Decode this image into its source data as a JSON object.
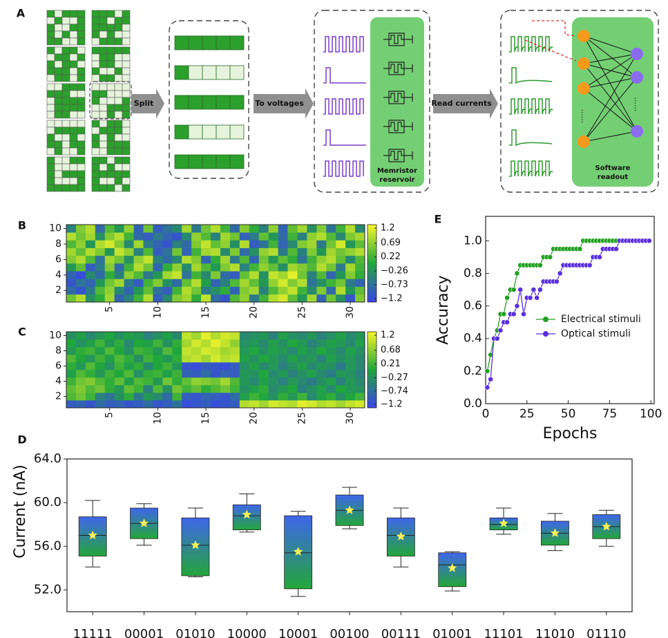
{
  "panel_labels": [
    "A",
    "B",
    "C",
    "D",
    "E"
  ],
  "diagram": {
    "arrows": [
      "Split",
      "To voltages",
      "Read currents"
    ],
    "reservoir_label": [
      "Memristor",
      "reservoir"
    ],
    "readout_label": [
      "Software",
      "readout"
    ],
    "ellipsis": "......"
  },
  "chart_data": [
    {
      "type": "heatmap",
      "x": [
        1,
        2,
        3,
        4,
        5,
        6,
        7,
        8,
        9,
        10,
        11,
        12,
        13,
        14,
        15,
        16,
        17,
        18,
        19,
        20,
        21,
        22,
        23,
        24,
        25,
        26,
        27,
        28,
        29,
        30,
        31
      ],
      "y": [
        1,
        2,
        3,
        4,
        5,
        6,
        7,
        8,
        9,
        10
      ],
      "xlim": [
        0.5,
        31.5
      ],
      "ylim": [
        0.5,
        10.5
      ],
      "xticks": [
        5,
        10,
        15,
        20,
        25,
        30
      ],
      "yticks": [
        2,
        4,
        6,
        8,
        10
      ],
      "zlim": [
        -1.32,
        1.32
      ],
      "colormap": [
        "#3a45e8",
        "#20a63c",
        "#f6f62a"
      ],
      "colorbar_ticks": [
        1.2,
        0.69,
        0.22,
        {
          "value": -0.26,
          "label": "−0.26"
        },
        {
          "value": -0.73,
          "label": "−0.73"
        },
        {
          "value": -1.2,
          "label": "−1.2"
        }
      ],
      "z": [
        [
          0.5,
          0.9,
          -0.3,
          0.1,
          0.8,
          -0.9,
          -0.5,
          0.2,
          0.9,
          -1.0,
          -0.4,
          0.6,
          0.8,
          0.1,
          1.0,
          -0.8,
          -1.1,
          0.3,
          0.7,
          -0.6,
          0.2,
          0.9,
          1.1,
          0.4,
          -0.2,
          0.8,
          -0.9,
          0.5,
          -0.3,
          -1.1,
          0.6
        ],
        [
          -0.8,
          -1.1,
          -0.6,
          0.3,
          0.7,
          -0.4,
          -0.9,
          -0.2,
          0.4,
          -0.7,
          -1.0,
          0.2,
          0.9,
          0.5,
          -0.6,
          -0.3,
          0.1,
          -0.9,
          0.6,
          0.8,
          -0.5,
          0.3,
          0.7,
          1.0,
          0.2,
          -0.4,
          0.6,
          -0.8,
          0.9,
          -0.2,
          0.4
        ],
        [
          -1.1,
          -0.7,
          -0.9,
          -0.2,
          0.5,
          0.8,
          -0.6,
          -1.0,
          0.2,
          0.6,
          -0.3,
          -0.8,
          0.4,
          0.9,
          -0.1,
          -0.9,
          -0.5,
          0.3,
          0.8,
          0.4,
          -0.2,
          0.7,
          1.1,
          0.6,
          0.9,
          -0.7,
          -0.3,
          0.2,
          0.5,
          -0.6,
          -0.9
        ],
        [
          -0.9,
          -1.2,
          -0.4,
          -0.8,
          0.1,
          -0.5,
          0.7,
          0.3,
          -0.6,
          -0.2,
          0.8,
          1.0,
          -0.7,
          0.2,
          -0.4,
          0.6,
          -0.8,
          -1.0,
          0.4,
          0.9,
          -0.3,
          1.0,
          0.8,
          1.2,
          0.5,
          -0.5,
          0.3,
          -0.9,
          -0.2,
          0.6,
          0.1
        ],
        [
          -0.2,
          0.4,
          -1.0,
          -0.6,
          0.6,
          -0.8,
          0.2,
          0.9,
          0.5,
          -0.9,
          0.1,
          0.7,
          -0.4,
          0.8,
          0.3,
          -0.2,
          0.6,
          0.9,
          -0.5,
          0.2,
          0.7,
          0.4,
          -0.3,
          0.8,
          0.6,
          0.3,
          0.9,
          0.5,
          -0.6,
          0.8,
          0.2
        ],
        [
          0.6,
          0.9,
          0.3,
          -0.7,
          0.8,
          0.5,
          -0.3,
          0.7,
          1.0,
          -0.5,
          -0.8,
          -0.4,
          0.9,
          0.6,
          -0.9,
          0.1,
          0.8,
          -0.6,
          0.3,
          -0.9,
          0.5,
          -0.2,
          0.4,
          0.1,
          -0.7,
          0.2,
          0.7,
          0.9,
          0.4,
          -0.4,
          0.3
        ],
        [
          0.8,
          0.4,
          0.9,
          0.6,
          -0.2,
          1.0,
          0.7,
          -0.5,
          0.3,
          -1.0,
          -0.7,
          0.5,
          -0.9,
          0.2,
          0.8,
          0.9,
          -0.4,
          0.6,
          -0.8,
          -0.3,
          0.7,
          0.9,
          -0.6,
          0.3,
          -0.5,
          0.6,
          -0.2,
          0.8,
          0.5,
          0.7,
          0.9
        ],
        [
          0.3,
          0.7,
          -0.2,
          0.9,
          1.1,
          0.6,
          -0.4,
          0.8,
          -0.6,
          -0.9,
          -1.1,
          -0.5,
          -0.8,
          0.6,
          1.0,
          0.4,
          0.7,
          -0.3,
          0.9,
          -1.0,
          -0.7,
          0.2,
          -0.9,
          -0.4,
          0.6,
          0.8,
          -0.6,
          0.5,
          1.1,
          -0.2,
          0.4
        ],
        [
          0.9,
          0.5,
          0.8,
          -0.3,
          0.6,
          0.9,
          0.2,
          -0.8,
          -1.0,
          -0.6,
          -0.9,
          -1.1,
          -0.4,
          0.7,
          0.3,
          -0.5,
          0.8,
          0.5,
          -0.9,
          -0.6,
          0.4,
          -0.2,
          -0.8,
          0.2,
          -0.5,
          0.7,
          0.9,
          0.3,
          -0.4,
          0.6,
          0.8
        ],
        [
          -0.5,
          0.6,
          0.9,
          -0.8,
          0.3,
          -0.2,
          0.7,
          -0.9,
          0.5,
          -1.0,
          -0.7,
          -0.4,
          0.8,
          -0.6,
          0.5,
          0.9,
          0.2,
          -0.8,
          0.6,
          0.1,
          -0.5,
          0.7,
          -0.9,
          0.4,
          0.8,
          -0.3,
          0.6,
          -0.7,
          0.2,
          0.9,
          -0.4
        ]
      ]
    },
    {
      "type": "heatmap",
      "x": [
        1,
        2,
        3,
        4,
        5,
        6,
        7,
        8,
        9,
        10,
        11,
        12,
        13,
        14,
        15,
        16,
        17,
        18,
        19,
        20,
        21,
        22,
        23,
        24,
        25,
        26,
        27,
        28,
        29,
        30,
        31
      ],
      "y": [
        1,
        2,
        3,
        4,
        5,
        6,
        7,
        8,
        9,
        10
      ],
      "xlim": [
        0.5,
        31.5
      ],
      "ylim": [
        0.5,
        10.5
      ],
      "xticks": [
        5,
        10,
        15,
        20,
        25,
        30
      ],
      "yticks": [
        2,
        4,
        6,
        8,
        10
      ],
      "zlim": [
        -1.32,
        1.32
      ],
      "colormap": [
        "#3a45e8",
        "#20a63c",
        "#f6f62a"
      ],
      "colorbar_ticks": [
        1.2,
        0.68,
        0.21,
        {
          "value": -0.27,
          "label": "−0.27"
        },
        {
          "value": -0.74,
          "label": "−0.74"
        },
        {
          "value": -1.2,
          "label": "−1.2"
        }
      ],
      "z": [
        [
          -1.0,
          -0.9,
          -1.1,
          -0.8,
          -1.0,
          -0.9,
          -1.1,
          -1.0,
          -0.8,
          -1.1,
          -1.0,
          -0.7,
          -1.2,
          -1.1,
          -1.0,
          -1.2,
          -1.1,
          -1.0,
          0.9,
          1.0,
          0.8,
          1.1,
          1.0,
          0.9,
          1.2,
          1.1,
          0.9,
          1.0,
          0.8,
          1.0,
          1.1
        ],
        [
          0.3,
          0.5,
          0.2,
          -0.5,
          -0.7,
          -0.3,
          0.1,
          -0.6,
          -0.2,
          -0.4,
          -0.8,
          0.2,
          -1.0,
          -1.1,
          -0.9,
          -1.0,
          -1.1,
          -0.8,
          -0.1,
          0.2,
          0.0,
          -0.3,
          0.1,
          -0.2,
          0.2,
          -0.4,
          -0.1,
          0.1,
          -0.3,
          0.0,
          0.2
        ],
        [
          0.4,
          0.6,
          0.3,
          0.5,
          0.1,
          -0.2,
          0.4,
          0.2,
          -0.5,
          0.3,
          -0.3,
          0.5,
          0.2,
          0.4,
          0.1,
          0.3,
          0.5,
          0.2,
          -0.3,
          -0.1,
          0.1,
          -0.4,
          -0.2,
          0.0,
          -0.5,
          -0.3,
          -0.1,
          -0.4,
          0.0,
          -0.2,
          -0.3
        ],
        [
          0.2,
          0.5,
          0.6,
          0.3,
          0.1,
          0.4,
          -0.1,
          0.3,
          0.2,
          -0.2,
          0.5,
          0.1,
          0.4,
          0.7,
          0.6,
          0.5,
          0.8,
          0.3,
          -0.2,
          -0.4,
          -0.1,
          -0.3,
          -0.5,
          -0.2,
          -0.4,
          -0.6,
          -0.3,
          -0.1,
          -0.5,
          -0.2,
          -0.4
        ],
        [
          -0.1,
          0.3,
          0.1,
          -0.2,
          0.2,
          0.0,
          0.3,
          -0.3,
          0.1,
          0.2,
          -0.1,
          0.2,
          -0.9,
          -1.0,
          -0.8,
          -1.1,
          -0.9,
          -1.0,
          -0.2,
          -0.3,
          0.0,
          -0.4,
          -0.2,
          -0.5,
          -0.3,
          -0.1,
          -0.4,
          -0.6,
          -0.2,
          -0.3,
          -0.5
        ],
        [
          0.1,
          -0.2,
          0.3,
          0.0,
          -0.3,
          0.2,
          -0.1,
          0.1,
          -0.4,
          0.0,
          0.2,
          -0.2,
          -1.1,
          -1.2,
          -1.0,
          -1.1,
          -1.2,
          -1.0,
          -0.3,
          -0.1,
          -0.4,
          -0.2,
          -0.5,
          -0.3,
          -0.1,
          -0.4,
          -0.2,
          -0.3,
          -0.6,
          -0.2,
          -0.4
        ],
        [
          0.3,
          0.0,
          -0.2,
          0.2,
          -0.1,
          0.3,
          0.1,
          -0.3,
          0.2,
          0.0,
          -0.2,
          0.1,
          0.9,
          1.0,
          0.8,
          1.1,
          0.9,
          1.0,
          -0.1,
          -0.3,
          0.0,
          -0.2,
          -0.4,
          -0.1,
          -0.3,
          -0.2,
          -0.5,
          -0.1,
          -0.3,
          -0.2,
          -0.4
        ],
        [
          -0.2,
          0.1,
          0.2,
          -0.1,
          0.3,
          0.0,
          -0.3,
          0.2,
          0.1,
          -0.2,
          0.3,
          0.0,
          1.0,
          0.9,
          1.1,
          1.0,
          0.8,
          0.9,
          -0.2,
          0.0,
          -0.3,
          -0.1,
          -0.2,
          -0.4,
          -0.1,
          -0.3,
          0.0,
          -0.2,
          -0.4,
          -0.1,
          -0.3
        ],
        [
          0.0,
          -0.3,
          -0.1,
          0.2,
          -0.2,
          0.1,
          -0.4,
          0.0,
          -0.1,
          0.2,
          -0.3,
          0.1,
          0.8,
          1.1,
          0.9,
          1.2,
          1.0,
          0.7,
          -0.3,
          -0.2,
          -0.4,
          -0.1,
          -0.3,
          0.0,
          -0.2,
          -0.5,
          -0.3,
          -0.1,
          -0.2,
          -0.4,
          -0.1
        ],
        [
          -0.3,
          -0.1,
          -0.4,
          -0.2,
          0.0,
          -0.3,
          -0.1,
          -0.2,
          -0.5,
          -0.3,
          -0.1,
          -0.4,
          1.0,
          0.8,
          1.2,
          0.9,
          1.1,
          1.0,
          -0.4,
          -0.3,
          -0.2,
          -0.5,
          -0.1,
          -0.3,
          -0.4,
          -0.2,
          -0.5,
          -0.3,
          -0.1,
          -0.4,
          -0.2
        ]
      ]
    },
    {
      "type": "line",
      "x_label": "Epochs",
      "y_label": "Accuracy",
      "legend": "right",
      "xlim": [
        0,
        102
      ],
      "ylim": [
        0,
        1.15
      ],
      "xticks": [
        0,
        25,
        50,
        75,
        100
      ],
      "yticks": [
        {
          "value": 0,
          "label": "0.0"
        },
        0.2,
        0.4,
        0.6,
        0.8,
        {
          "value": 1,
          "label": "1.0"
        }
      ],
      "x": [
        1,
        3,
        5,
        7,
        9,
        11,
        13,
        15,
        17,
        19,
        21,
        23,
        25,
        27,
        29,
        31,
        33,
        35,
        37,
        39,
        41,
        43,
        45,
        47,
        49,
        51,
        53,
        55,
        57,
        59,
        61,
        63,
        65,
        67,
        69,
        71,
        73,
        75,
        77,
        79,
        81,
        83,
        85,
        87,
        89,
        91,
        93,
        95,
        97,
        99
      ],
      "series": [
        {
          "name": "Electrical stimuli",
          "color": "#22a022",
          "values": [
            0.2,
            0.3,
            0.4,
            0.45,
            0.55,
            0.55,
            0.65,
            0.7,
            0.7,
            0.8,
            0.85,
            0.85,
            0.85,
            0.85,
            0.85,
            0.85,
            0.85,
            0.9,
            0.9,
            0.9,
            0.95,
            0.95,
            0.95,
            0.95,
            0.95,
            0.95,
            0.95,
            0.95,
            0.95,
            1,
            1,
            1,
            1,
            1,
            1,
            1,
            1,
            1,
            1,
            1,
            1,
            1,
            1,
            1,
            1,
            1,
            1,
            1,
            1,
            1
          ]
        },
        {
          "name": "Optical stimuli",
          "color": "#5a2fe0",
          "values": [
            0.1,
            0.15,
            0.4,
            0.4,
            0.45,
            0.5,
            0.5,
            0.55,
            0.55,
            0.6,
            0.7,
            0.55,
            0.65,
            0.65,
            0.7,
            0.65,
            0.7,
            0.75,
            0.75,
            0.75,
            0.75,
            0.75,
            0.8,
            0.85,
            0.85,
            0.85,
            0.85,
            0.85,
            0.85,
            0.85,
            0.85,
            0.85,
            0.9,
            0.9,
            0.9,
            0.95,
            0.95,
            0.95,
            0.95,
            0.95,
            1,
            1,
            1,
            1,
            1,
            1,
            1,
            1,
            1,
            1
          ]
        }
      ]
    },
    {
      "type": "box",
      "y_label": "Current (nA)",
      "ylim": [
        50,
        64
      ],
      "yticks": [
        {
          "value": 52,
          "label": "52.0"
        },
        {
          "value": 56,
          "label": "56.0"
        },
        {
          "value": 60,
          "label": "60.0"
        },
        {
          "value": 64,
          "label": "64.0"
        }
      ],
      "categories": [
        "11111",
        "00001",
        "01010",
        "10000",
        "10001",
        "00100",
        "00111",
        "01001",
        "11101",
        "11010",
        "01110"
      ],
      "box_colors": [
        "#3f66ea",
        "#24a63a"
      ],
      "mean_color": "#f7f05a",
      "whisker_low": [
        54.1,
        56.1,
        53.2,
        57.3,
        51.4,
        57.6,
        54.1,
        51.9,
        57.1,
        55.6,
        56.0
      ],
      "q1": [
        55.1,
        56.7,
        53.3,
        57.5,
        52.1,
        57.9,
        55.1,
        52.3,
        57.5,
        56.1,
        56.7
      ],
      "median": [
        57.0,
        58.1,
        56.1,
        58.8,
        55.4,
        59.3,
        57.0,
        54.3,
        58.0,
        57.2,
        57.8
      ],
      "q3": [
        58.7,
        59.5,
        58.6,
        59.8,
        58.8,
        60.7,
        58.6,
        55.4,
        58.6,
        58.3,
        58.9
      ],
      "whisker_high": [
        60.2,
        59.9,
        59.5,
        60.8,
        59.2,
        61.4,
        59.5,
        55.5,
        59.5,
        59.0,
        59.3
      ],
      "mean": [
        57.0,
        58.1,
        56.1,
        58.9,
        55.5,
        59.3,
        56.9,
        54.0,
        58.1,
        57.2,
        57.8
      ]
    }
  ]
}
